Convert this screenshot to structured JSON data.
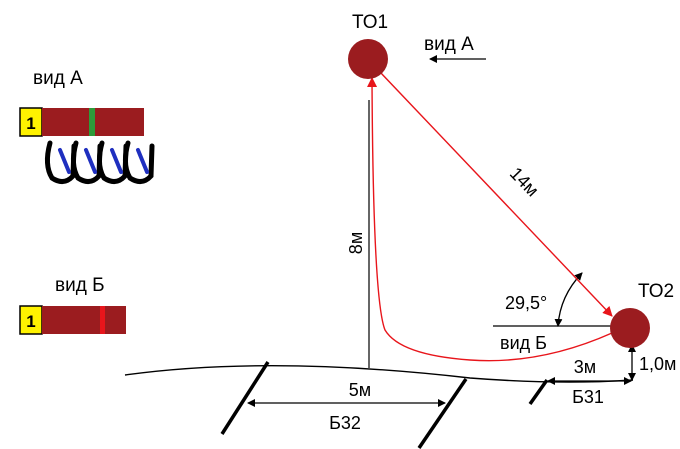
{
  "colors": {
    "marker": "#9B1C1F",
    "tape": "#9B1C1F",
    "path": "#E8151B",
    "badge": "#FFF200",
    "clip": "#1F2FBF",
    "ground": "#000000"
  },
  "views": {
    "a": {
      "title": "вид А",
      "badge": "1",
      "stripe_color": "#2E9B3A"
    },
    "b": {
      "title": "вид Б",
      "badge": "1",
      "stripe_color": "#E8151B"
    }
  },
  "points": {
    "to1": {
      "label": "ТО1"
    },
    "to2": {
      "label": "ТО2"
    }
  },
  "labels": {
    "view_a_arrow": "вид А",
    "view_b_arrow": "вид Б",
    "dist_to1_to2": "14м",
    "height_to1": "8м",
    "angle": "29,5°",
    "height_to2": "1,0м",
    "dist_b32": "5м",
    "b32": "Б32",
    "dist_b31": "3м",
    "b31": "Б31"
  }
}
